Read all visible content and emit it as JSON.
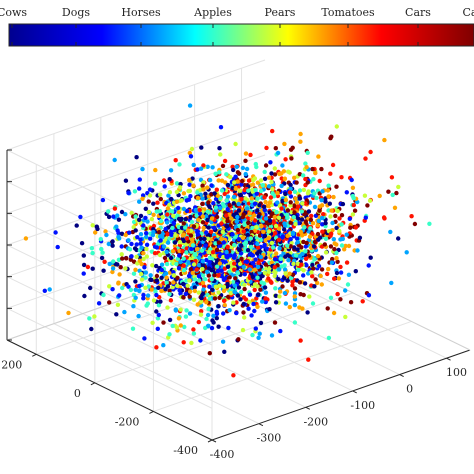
{
  "chart_data": {
    "type": "scatter",
    "projection": "3d",
    "colorbar": {
      "placement": "top",
      "colormap": "jet",
      "colormap_stops": [
        "#00008f",
        "#0000ff",
        "#00ffff",
        "#ffff00",
        "#ff0000",
        "#800000"
      ],
      "labels": [
        "Cows",
        "Dogs",
        "Horses",
        "Apples",
        "Pears",
        "Tomatoes",
        "Cars",
        "Cats"
      ]
    },
    "axes": {
      "x": {
        "ticks": [
          -400,
          -300,
          -200,
          -100,
          0,
          100
        ],
        "tick_labels": [
          "-400",
          "-300",
          "-200",
          "-100",
          "0",
          "100"
        ],
        "range": [
          -400,
          150
        ]
      },
      "y": {
        "ticks": [
          -400,
          -200,
          0,
          200
        ],
        "tick_labels": [
          "-400",
          "-200",
          "0",
          "200"
        ],
        "range": [
          -400,
          300
        ]
      },
      "z": {
        "ticks": [],
        "tick_labels": [],
        "range": [
          -100,
          100
        ]
      }
    },
    "grid": true,
    "point_count": 3000,
    "point_color_map": "colorbar",
    "cluster": {
      "x_range": [
        -330,
        120
      ],
      "y_range": [
        -200,
        200
      ],
      "z_range": [
        -60,
        60
      ]
    }
  }
}
